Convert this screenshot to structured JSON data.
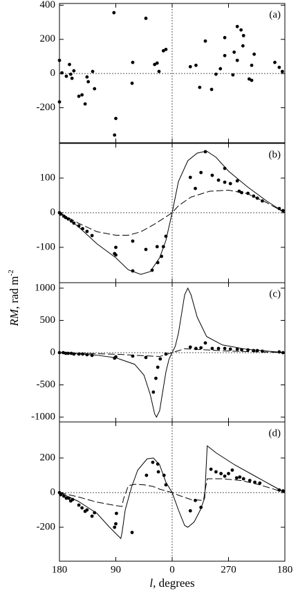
{
  "chart_data": [
    {
      "type": "scatter",
      "label": "(a)",
      "ylim": [
        -405,
        410
      ],
      "yticks": [
        400,
        200,
        0,
        -200
      ],
      "series": [
        {
          "style": "points",
          "color": "#000000",
          "x": [
            180,
            180,
            176,
            169,
            164,
            162,
            160,
            157,
            149,
            144,
            139,
            136,
            134,
            127,
            124,
            93,
            92,
            90,
            64,
            63,
            42,
            28,
            24,
            21,
            14,
            10,
            -29,
            -38,
            -44,
            -53,
            -63,
            -70,
            -77,
            -84,
            -84,
            -97,
            -99,
            -104,
            -104,
            -110,
            -113,
            -114,
            -123,
            -127,
            -127,
            -131,
            -164,
            -171,
            -176
          ],
          "values": [
            77,
            -166,
            4,
            -16,
            53,
            -4,
            -28,
            16,
            -133,
            -125,
            -178,
            -20,
            -48,
            12,
            -89,
            356,
            -360,
            -263,
            -57,
            65,
            323,
            53,
            61,
            12,
            133,
            141,
            40,
            48,
            -81,
            190,
            -93,
            -4,
            28,
            105,
            210,
            -8,
            125,
            77,
            275,
            255,
            162,
            222,
            -32,
            -40,
            48,
            113,
            65,
            36,
            12
          ]
        }
      ]
    },
    {
      "type": "scatter",
      "label": "(b)",
      "ylim": [
        -202,
        200
      ],
      "yticks": [
        100,
        0,
        -100
      ],
      "series": [
        {
          "style": "points",
          "color": "#000000",
          "x": [
            180,
            178,
            173,
            170,
            166,
            161,
            157,
            149,
            143,
            136,
            128,
            92,
            90,
            90,
            63,
            63,
            42,
            32,
            24,
            23,
            17,
            14,
            10,
            -29,
            -37,
            -46,
            -53,
            -64,
            -74,
            -84,
            -84,
            -93,
            -104,
            -107,
            -111,
            -121,
            -130,
            -136,
            -144,
            -171,
            -177
          ],
          "values": [
            0,
            -4,
            -10,
            -14,
            -18,
            -24,
            -30,
            -38,
            -46,
            -54,
            -66,
            -118,
            -122,
            -100,
            -168,
            -82,
            -106,
            -166,
            -98,
            -144,
            -126,
            -98,
            -68,
            102,
            70,
            116,
            176,
            108,
            94,
            128,
            88,
            84,
            92,
            62,
            58,
            56,
            48,
            42,
            34,
            12,
            6
          ]
        },
        {
          "style": "solid",
          "color": "#000000",
          "x": [
            180,
            150,
            120,
            90,
            70,
            50,
            35,
            20,
            10,
            0,
            -10,
            -25,
            -40,
            -55,
            -70,
            -90,
            -120,
            -150,
            -180
          ],
          "values": [
            0,
            -40,
            -90,
            -130,
            -165,
            -178,
            -170,
            -130,
            -80,
            0,
            90,
            150,
            172,
            178,
            160,
            120,
            75,
            35,
            0
          ]
        },
        {
          "style": "dashed",
          "color": "#000000",
          "x": [
            180,
            150,
            120,
            90,
            70,
            50,
            30,
            10,
            0,
            -10,
            -30,
            -60,
            -90,
            -120,
            -150,
            -180
          ],
          "values": [
            0,
            -30,
            -55,
            -65,
            -65,
            -55,
            -35,
            -12,
            0,
            20,
            45,
            62,
            65,
            55,
            30,
            0
          ]
        }
      ]
    },
    {
      "type": "scatter",
      "label": "(c)",
      "ylabel": [
        "RM",
        ", rad m",
        "-2"
      ],
      "ylim": [
        -1075,
        1085
      ],
      "yticks": [
        1000,
        500,
        0,
        -500,
        -1000
      ],
      "series": [
        {
          "style": "points",
          "color": "#000000",
          "x": [
            180,
            174,
            170,
            166,
            161,
            157,
            149,
            143,
            136,
            128,
            92,
            90,
            63,
            42,
            30,
            26,
            23,
            19,
            10,
            -29,
            -38,
            -46,
            -53,
            -64,
            -74,
            -84,
            -93,
            -104,
            -111,
            -121,
            -130,
            -136,
            -144,
            -171,
            -177
          ],
          "values": [
            0,
            0,
            -11,
            -11,
            -11,
            -22,
            -22,
            -22,
            -32,
            -43,
            -86,
            -65,
            -54,
            -75,
            -612,
            -398,
            -226,
            -97,
            -22,
            86,
            65,
            75,
            150,
            65,
            65,
            65,
            54,
            54,
            43,
            43,
            32,
            32,
            22,
            11,
            0
          ]
        },
        {
          "style": "solid",
          "color": "#000000",
          "x": [
            180,
            120,
            90,
            60,
            45,
            35,
            28,
            25,
            20,
            10,
            5,
            0,
            -5,
            -10,
            -20,
            -25,
            -30,
            -40,
            -55,
            -80,
            -120,
            -180
          ],
          "values": [
            0,
            -40,
            -80,
            -180,
            -350,
            -650,
            -950,
            -1000,
            -900,
            -300,
            -100,
            0,
            100,
            300,
            900,
            1000,
            900,
            550,
            250,
            120,
            50,
            0
          ]
        },
        {
          "style": "dashed",
          "color": "#000000",
          "x": [
            180,
            90,
            40,
            20,
            0,
            -20,
            -40,
            -90,
            -180
          ],
          "values": [
            0,
            -25,
            -50,
            -60,
            0,
            60,
            50,
            25,
            0
          ]
        }
      ]
    },
    {
      "type": "scatter",
      "label": "(d)",
      "xlabel": [
        "l",
        ", degrees"
      ],
      "ylim": [
        -396,
        408
      ],
      "yticks": [
        200,
        0,
        -200
      ],
      "xlim": [
        180,
        -180
      ],
      "xticks": [
        180,
        90,
        0,
        {
          "value": -90,
          "label": "270"
        },
        {
          "value": -180,
          "label": "180"
        }
      ],
      "series": [
        {
          "style": "points",
          "color": "#000000",
          "x": [
            180,
            178,
            173,
            169,
            165,
            162,
            159,
            149,
            144,
            139,
            136,
            128,
            124,
            92,
            90,
            89,
            64,
            41,
            31,
            23,
            22,
            13,
            10,
            -29,
            -37,
            -46,
            -62,
            -70,
            -78,
            -84,
            -90,
            -96,
            -103,
            -108,
            -114,
            -124,
            -132,
            -140,
            -171,
            -177
          ],
          "values": [
            0,
            -12,
            -20,
            -32,
            -32,
            -48,
            -40,
            -72,
            -88,
            -108,
            -100,
            -136,
            -116,
            -200,
            -180,
            -120,
            -230,
            100,
            175,
            165,
            120,
            100,
            45,
            -105,
            -45,
            -85,
            135,
            120,
            110,
            95,
            110,
            130,
            85,
            90,
            80,
            70,
            60,
            55,
            15,
            10
          ]
        },
        {
          "style": "solid",
          "color": "#000000",
          "x": [
            180,
            150,
            120,
            100,
            82,
            80,
            75,
            65,
            55,
            40,
            30,
            20,
            10,
            0,
            -10,
            -20,
            -25,
            -35,
            -45,
            -52,
            -55,
            -56,
            -70,
            -100,
            -130,
            -160,
            -180
          ],
          "values": [
            0,
            -50,
            -120,
            -200,
            -265,
            -230,
            -100,
            30,
            130,
            195,
            200,
            160,
            60,
            0,
            -100,
            -190,
            -200,
            -170,
            -100,
            -30,
            200,
            270,
            230,
            160,
            100,
            40,
            0
          ]
        },
        {
          "style": "dashed",
          "color": "#000000",
          "x": [
            180,
            150,
            120,
            90,
            80,
            78,
            70,
            60,
            45,
            30,
            20,
            0,
            -10,
            -30,
            -50,
            -53,
            -56,
            -80,
            -110,
            -140,
            -180
          ],
          "values": [
            0,
            -25,
            -55,
            -75,
            -80,
            -40,
            40,
            48,
            45,
            35,
            20,
            0,
            -15,
            -40,
            -45,
            20,
            80,
            80,
            70,
            45,
            0
          ]
        }
      ]
    }
  ]
}
